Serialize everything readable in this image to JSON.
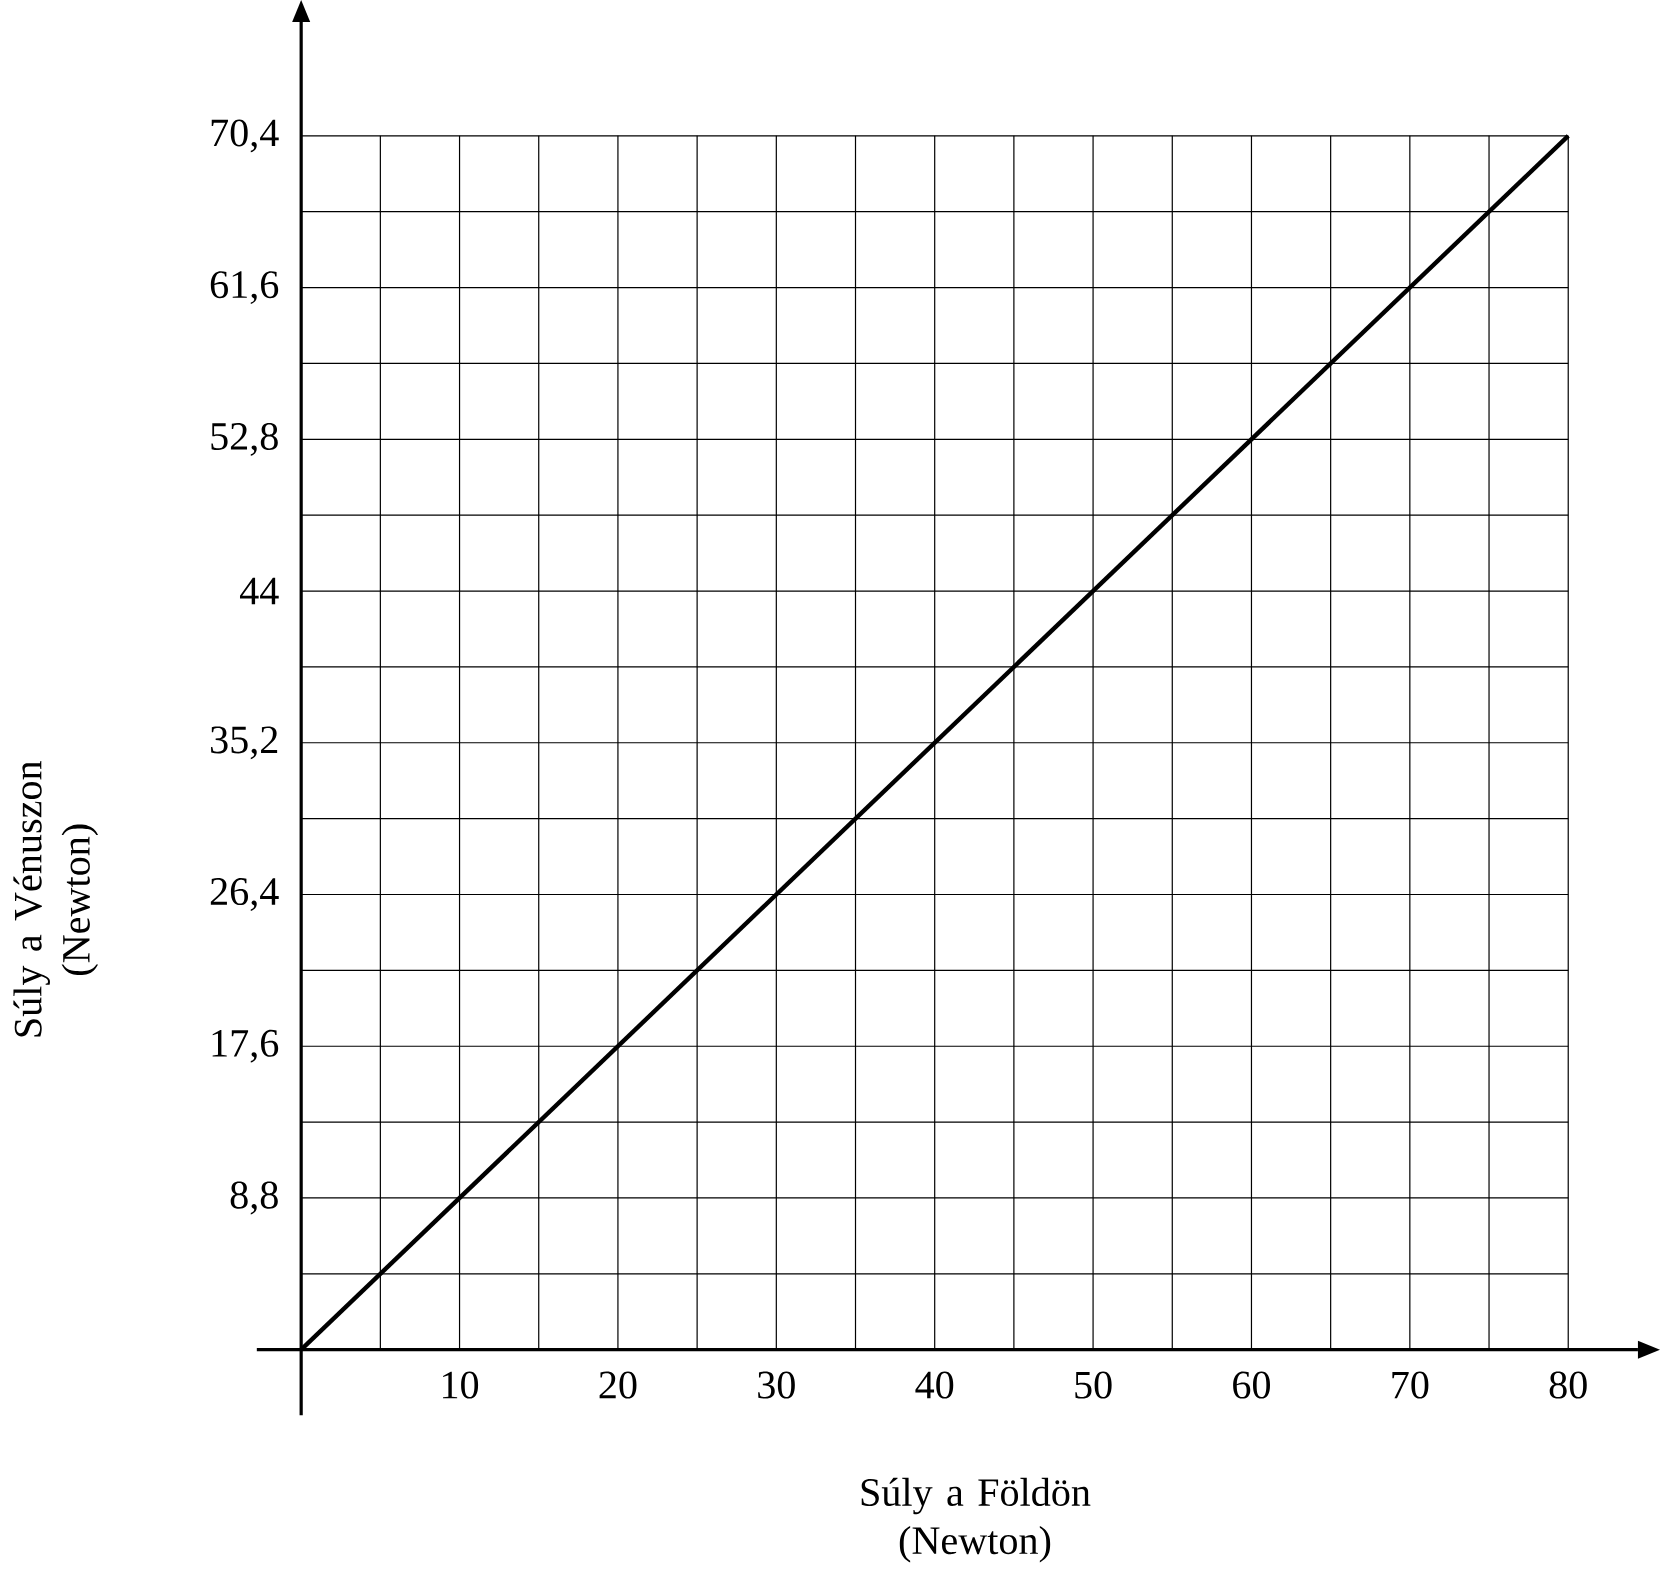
{
  "chart_data": {
    "type": "line",
    "xlabel": "Súly a Földön (Newton)",
    "ylabel": "Súly a Vénuszon (Newton)",
    "x": [
      0,
      80
    ],
    "values": [
      0,
      70.4
    ],
    "color": "#000000",
    "xlim": [
      -2.8,
      84.4
    ],
    "ylim": [
      -3.8,
      77
    ],
    "xticks": [
      {
        "value": 0,
        "label": null
      },
      {
        "value": 5,
        "label": null
      },
      10,
      {
        "value": 15,
        "label": null
      },
      20,
      {
        "value": 25,
        "label": null
      },
      30,
      {
        "value": 35,
        "label": null
      },
      40,
      {
        "value": 45,
        "label": null
      },
      50,
      {
        "value": 55,
        "label": null
      },
      60,
      {
        "value": 65,
        "label": null
      },
      70,
      {
        "value": 75,
        "label": null
      },
      80
    ],
    "yticks": [
      {
        "value": 0,
        "label": null
      },
      {
        "value": 4.4,
        "label": null
      },
      {
        "value": 8.8,
        "label": "8,8"
      },
      {
        "value": 13.2,
        "label": null
      },
      {
        "value": 17.6,
        "label": "17,6"
      },
      {
        "value": 22,
        "label": null
      },
      {
        "value": 26.4,
        "label": "26,4"
      },
      {
        "value": 30.8,
        "label": null
      },
      {
        "value": 35.2,
        "label": "35,2"
      },
      {
        "value": 39.6,
        "label": null
      },
      44,
      {
        "value": 48.4,
        "label": null
      },
      {
        "value": 52.8,
        "label": "52,8"
      },
      {
        "value": 57.2,
        "label": null
      },
      {
        "value": 61.6,
        "label": "61,6"
      },
      {
        "value": 66,
        "label": null
      },
      {
        "value": 70.4,
        "label": "70,4"
      }
    ],
    "grid": true
  }
}
